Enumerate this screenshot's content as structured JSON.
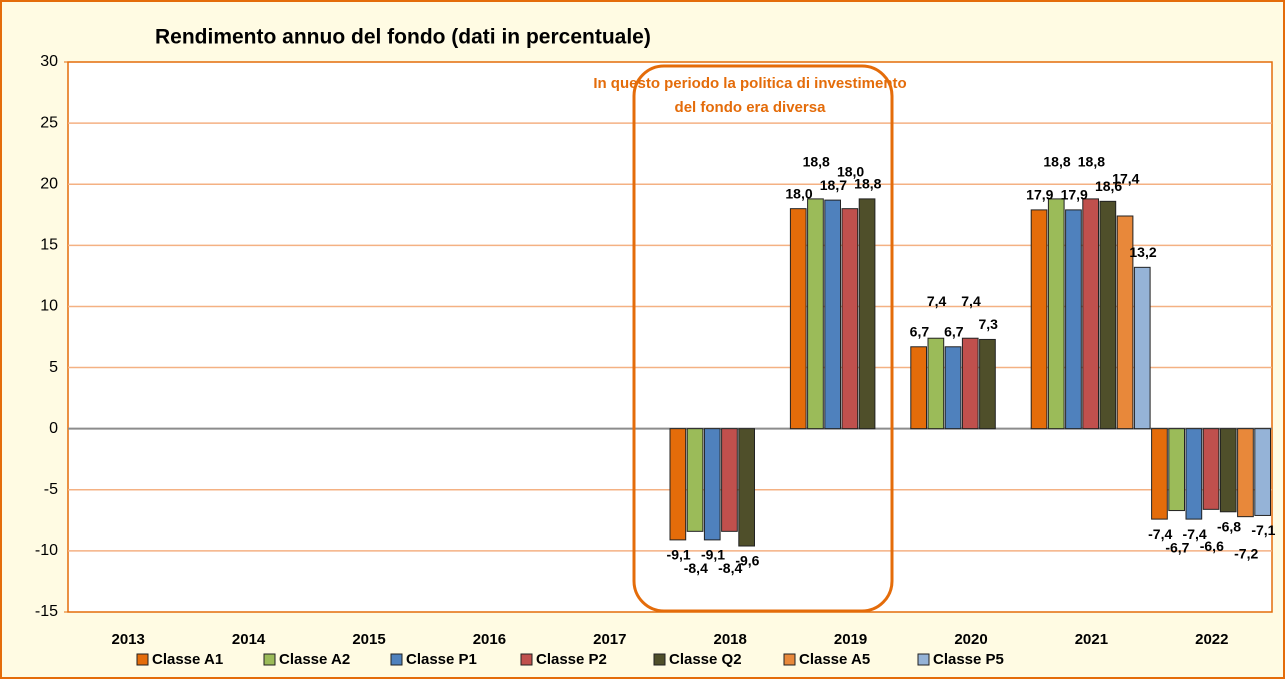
{
  "chart_data": {
    "type": "bar",
    "title": "Rendimento annuo del fondo (dati in percentuale)",
    "annotation": [
      "In questo periodo la politica di investimento",
      "del fondo era diversa"
    ],
    "categories": [
      "2013",
      "2014",
      "2015",
      "2016",
      "2017",
      "2018",
      "2019",
      "2020",
      "2021",
      "2022"
    ],
    "ylim": [
      -15,
      30
    ],
    "yticks": [
      -15,
      -10,
      -5,
      0,
      5,
      10,
      15,
      20,
      25,
      30
    ],
    "grid": true,
    "legend": "bottom",
    "series": [
      {
        "name": "Classe A1",
        "color": "#e46c0a",
        "values": [
          null,
          null,
          null,
          null,
          null,
          -9.1,
          18.0,
          6.7,
          17.9,
          -7.4
        ],
        "value_labels": [
          null,
          null,
          null,
          null,
          null,
          "-9,1",
          "18,0",
          "6,7",
          "17,9",
          "-7,4"
        ]
      },
      {
        "name": "Classe A2",
        "color": "#9bbb59",
        "values": [
          null,
          null,
          null,
          null,
          null,
          -8.4,
          18.8,
          7.4,
          18.8,
          -6.7
        ],
        "value_labels": [
          null,
          null,
          null,
          null,
          null,
          "-8,4",
          "18,8",
          "7,4",
          "18,8",
          "-6,7"
        ]
      },
      {
        "name": "Classe P1",
        "color": "#4f81bd",
        "values": [
          null,
          null,
          null,
          null,
          null,
          -9.1,
          18.7,
          6.7,
          17.9,
          -7.4
        ],
        "value_labels": [
          null,
          null,
          null,
          null,
          null,
          "-9,1",
          "18,7",
          "6,7",
          "17,9",
          "-7,4"
        ]
      },
      {
        "name": "Classe P2",
        "color": "#c0504d",
        "values": [
          null,
          null,
          null,
          null,
          null,
          -8.4,
          18.0,
          7.4,
          18.8,
          -6.6
        ],
        "value_labels": [
          null,
          null,
          null,
          null,
          null,
          "-8,4",
          "18,0",
          "7,4",
          "18,8",
          "-6,6"
        ]
      },
      {
        "name": "Classe Q2",
        "color": "#4f4f2a",
        "values": [
          null,
          null,
          null,
          null,
          null,
          -9.6,
          18.8,
          7.3,
          18.6,
          -6.8
        ],
        "value_labels": [
          null,
          null,
          null,
          null,
          null,
          "-9,6",
          "18,8",
          "7,3",
          "18,6",
          "-6,8"
        ]
      },
      {
        "name": "Classe A5",
        "color": "#e8883a",
        "values": [
          null,
          null,
          null,
          null,
          null,
          null,
          null,
          null,
          17.4,
          -7.2
        ],
        "value_labels": [
          null,
          null,
          null,
          null,
          null,
          null,
          null,
          null,
          "17,4",
          "-7,2"
        ]
      },
      {
        "name": "Classe P5",
        "color": "#95b3d7",
        "values": [
          null,
          null,
          null,
          null,
          null,
          null,
          null,
          null,
          13.2,
          -7.1
        ],
        "value_labels": [
          null,
          null,
          null,
          null,
          null,
          null,
          null,
          null,
          "13,2",
          "-7,1"
        ]
      }
    ]
  }
}
